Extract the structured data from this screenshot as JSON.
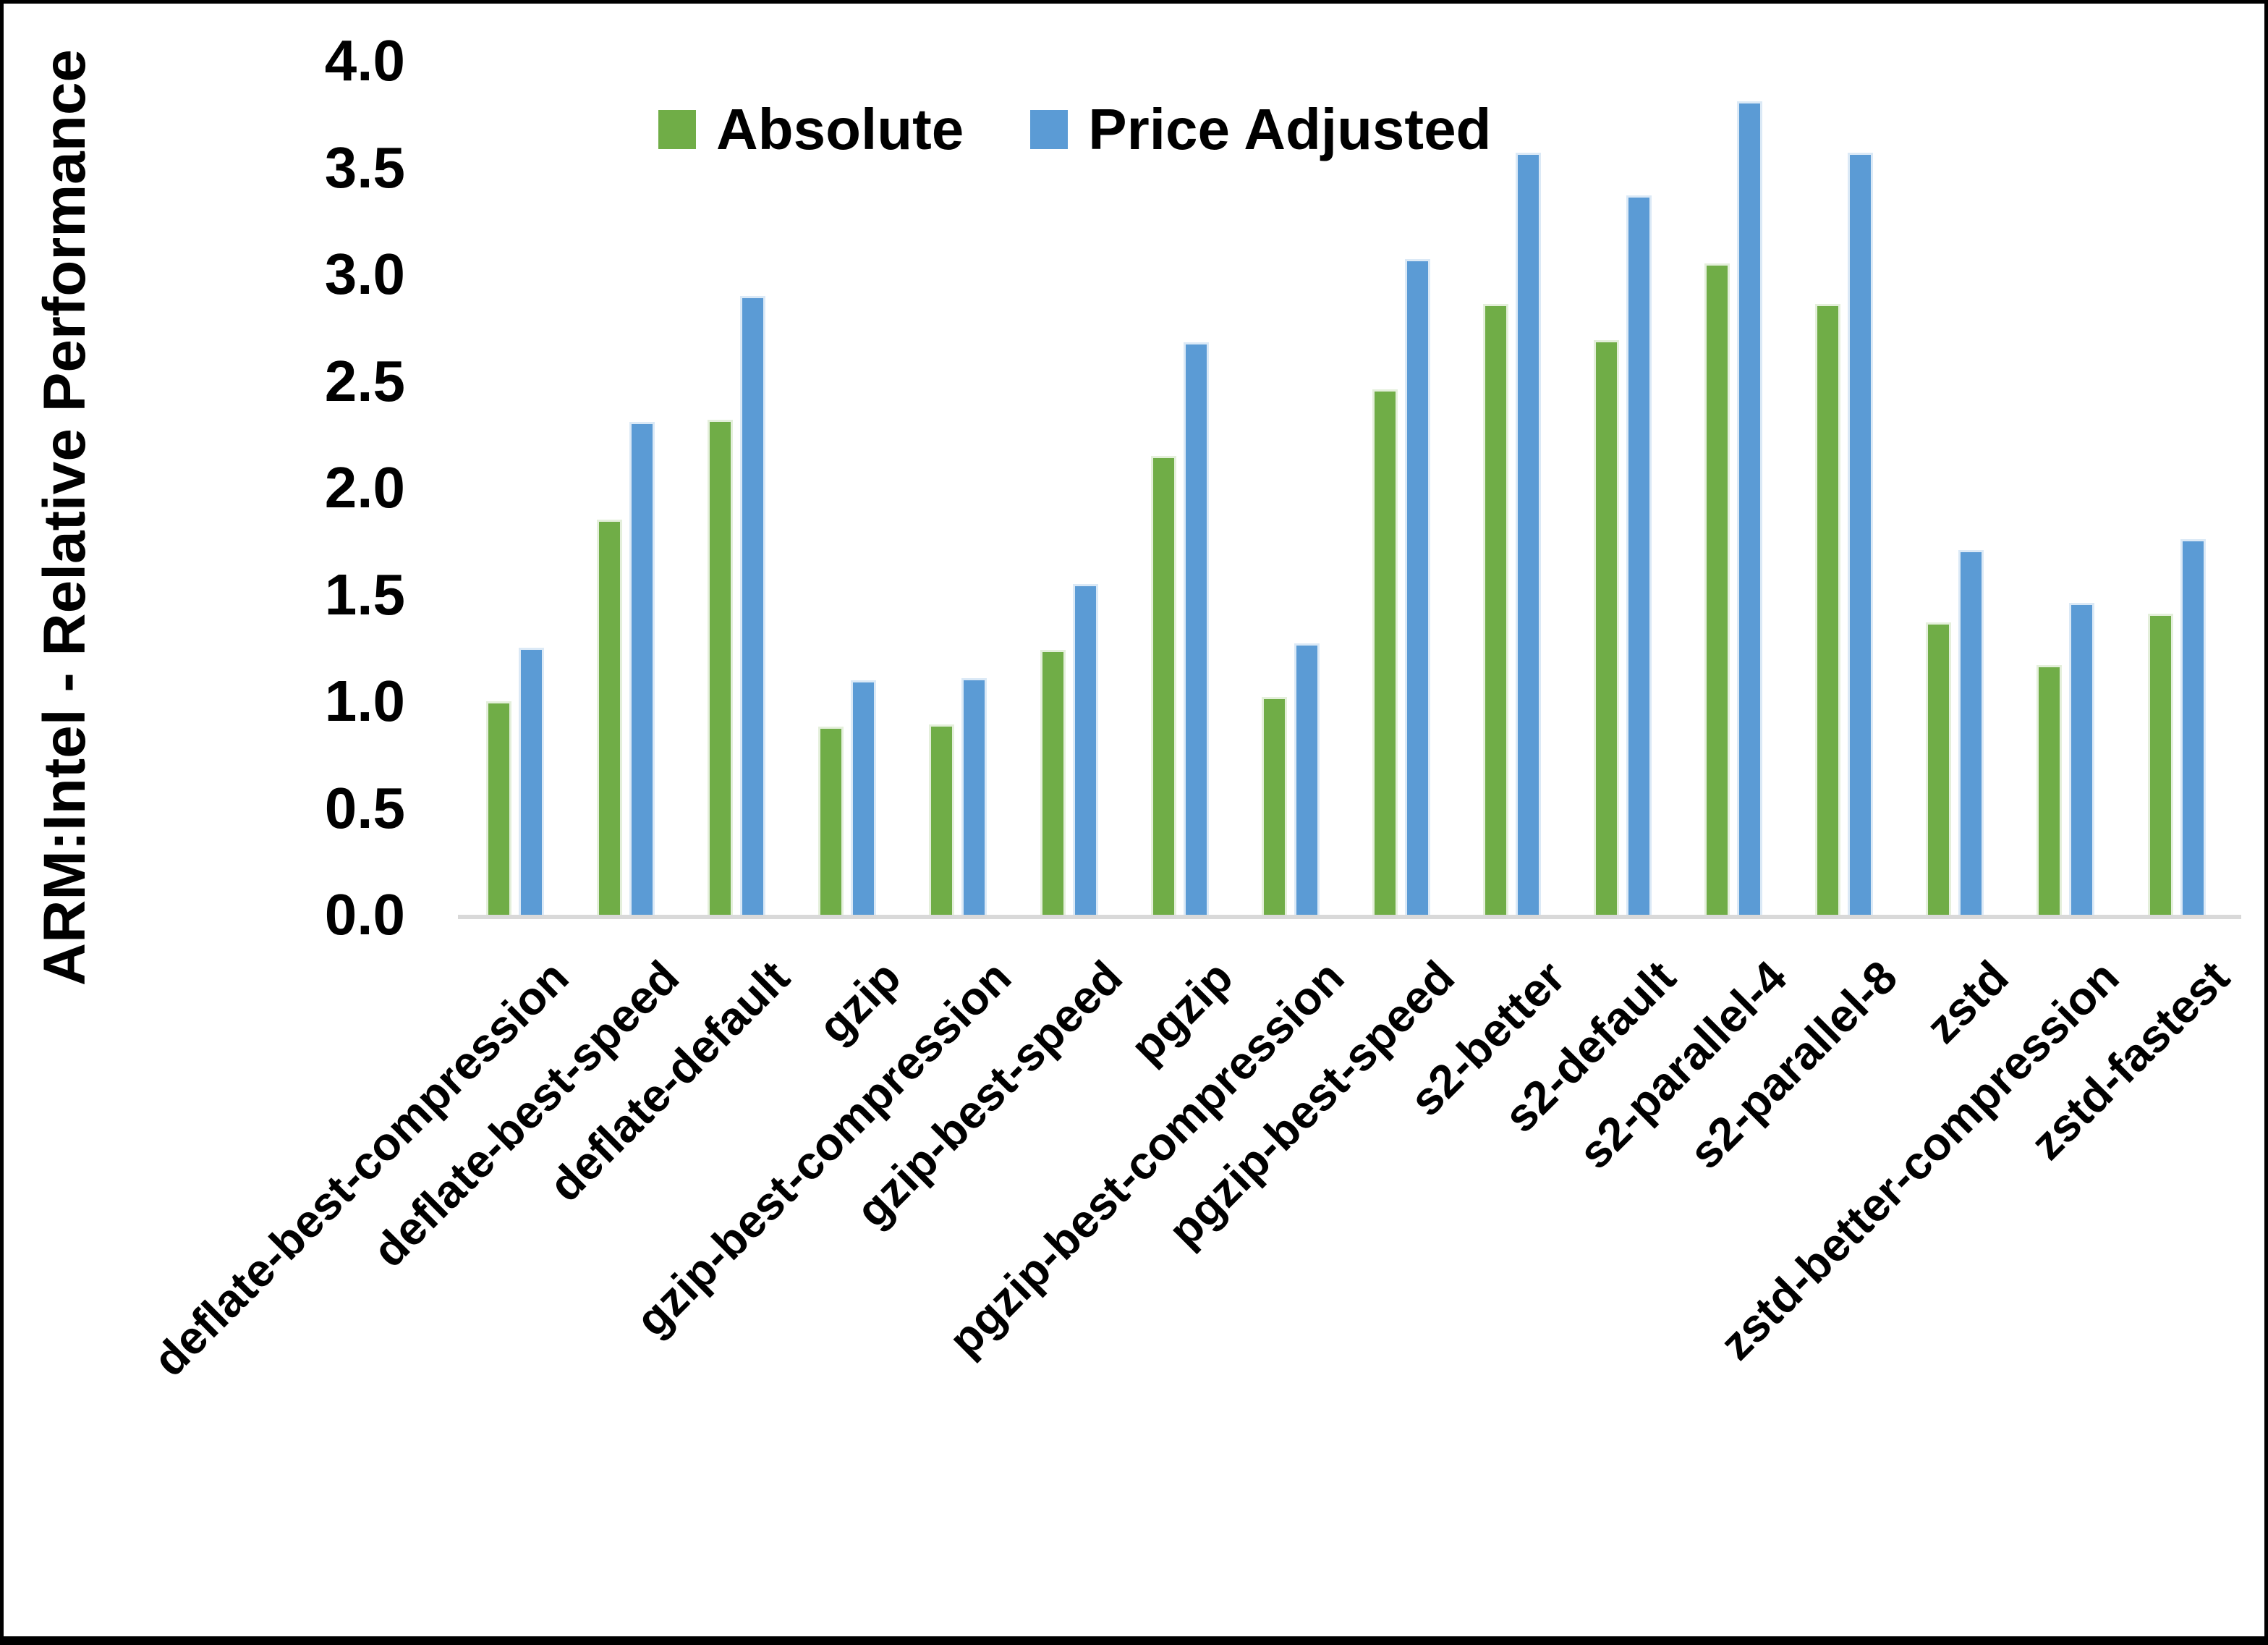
{
  "chart_data": {
    "type": "bar",
    "title": "",
    "ylabel": "ARM:Intel - Relative Performance",
    "xlabel": "",
    "ylim": [
      0.0,
      4.0
    ],
    "ytick_step": 0.5,
    "yticks": [
      "0.0",
      "0.5",
      "1.0",
      "1.5",
      "2.0",
      "2.5",
      "3.0",
      "3.5",
      "4.0"
    ],
    "grid": "off",
    "legend_position": "top-center",
    "categories": [
      "deflate-best-compression",
      "deflate-best-speed",
      "deflate-default",
      "gzip",
      "gzip-best-compression",
      "gzip-best-speed",
      "pgzip",
      "pgzip-best-compression",
      "pgzip-best-speed",
      "s2-better",
      "s2-default",
      "s2-parallel-4",
      "s2-parallel-8",
      "zstd",
      "zstd-better-compression",
      "zstd-fastest"
    ],
    "series": [
      {
        "name": "Absolute",
        "color": "#70AD47",
        "border_color": "#E4EFDB",
        "values": [
          1.0,
          1.85,
          2.32,
          0.88,
          0.89,
          1.24,
          2.15,
          1.02,
          2.46,
          2.86,
          2.69,
          3.05,
          2.86,
          1.37,
          1.17,
          1.41
        ]
      },
      {
        "name": "Price Adjusted",
        "color": "#5B9BD5",
        "border_color": "#DBE9F6",
        "values": [
          1.25,
          2.31,
          2.9,
          1.1,
          1.11,
          1.55,
          2.68,
          1.27,
          3.07,
          3.57,
          3.37,
          3.81,
          3.57,
          1.71,
          1.46,
          1.76
        ]
      }
    ],
    "axis_line_color": "#D9D9D9",
    "text_color": "#000000"
  }
}
